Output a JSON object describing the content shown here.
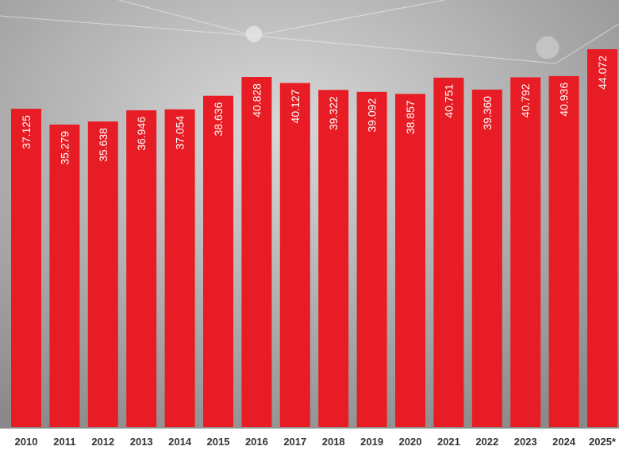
{
  "chart_data": {
    "type": "bar",
    "categories": [
      "2010",
      "2011",
      "2012",
      "2013",
      "2014",
      "2015",
      "2016",
      "2017",
      "2018",
      "2019",
      "2020",
      "2021",
      "2022",
      "2023",
      "2024",
      "2025*"
    ],
    "values": [
      37.125,
      35.279,
      35.638,
      36.946,
      37.054,
      38.636,
      40.828,
      40.127,
      39.322,
      39.092,
      38.857,
      40.751,
      39.36,
      40.792,
      40.936,
      44.072
    ],
    "value_labels": [
      "37.125",
      "35.279",
      "35.638",
      "36.946",
      "37.054",
      "38.636",
      "40.828",
      "40.127",
      "39.322",
      "39.092",
      "38.857",
      "40.751",
      "39.360",
      "40.792",
      "40.936",
      "44.072"
    ],
    "color": "#e81c24"
  }
}
